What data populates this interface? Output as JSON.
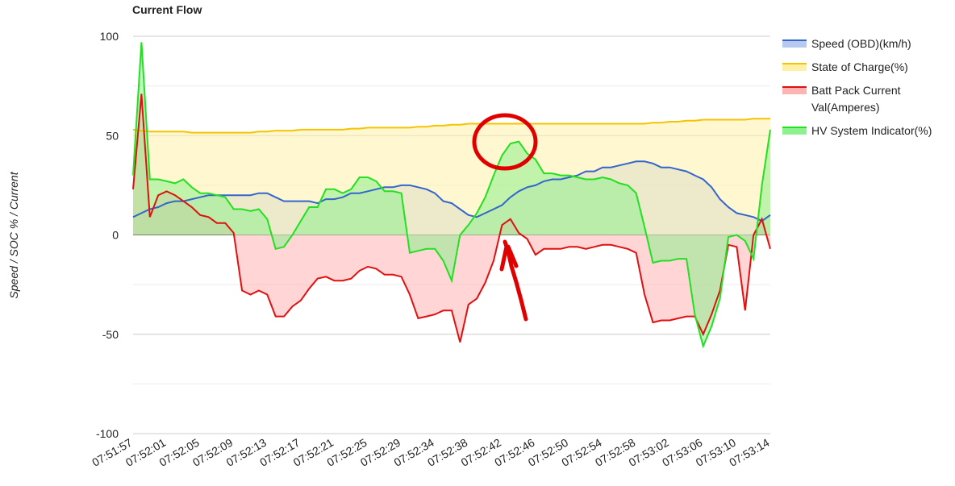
{
  "chart_data": {
    "type": "area",
    "title": "Current Flow",
    "y_label": "Speed / SOC % / Current",
    "categories": [
      "07:51:57",
      null,
      null,
      null,
      "07:52:01",
      null,
      null,
      null,
      "07:52:05",
      null,
      null,
      null,
      "07:52:09",
      null,
      null,
      null,
      "07:52:13",
      null,
      null,
      null,
      "07:52:17",
      null,
      null,
      null,
      "07:52:21",
      null,
      null,
      null,
      "07:52:25",
      null,
      null,
      null,
      "07:52:29",
      null,
      null,
      null,
      "07:52:34",
      null,
      null,
      null,
      "07:52:38",
      null,
      null,
      null,
      "07:52:42",
      null,
      null,
      null,
      "07:52:46",
      null,
      null,
      null,
      "07:52:50",
      null,
      null,
      null,
      "07:52:54",
      null,
      null,
      null,
      "07:52:58",
      null,
      null,
      null,
      "07:53:02",
      null,
      null,
      null,
      "07:53:06",
      null,
      null,
      null,
      "07:53:10",
      null,
      null,
      null,
      "07:53:14"
    ],
    "series": [
      {
        "name": "Speed (OBD)(km/h)",
        "color": "#3366cc",
        "fill": "#b7c9ee",
        "values": [
          9,
          11,
          13,
          14,
          16,
          17,
          17,
          18,
          19,
          20,
          20,
          20,
          20,
          20,
          20,
          21,
          21,
          19,
          17,
          17,
          17,
          17,
          16,
          18,
          18,
          19,
          21,
          21,
          22,
          23,
          24,
          24,
          25,
          25,
          24,
          23,
          21,
          17,
          16,
          13,
          10,
          9,
          11,
          13,
          15,
          19,
          22,
          24,
          25,
          27,
          28,
          28,
          29,
          30,
          32,
          32,
          34,
          34,
          35,
          36,
          37,
          37,
          36,
          34,
          34,
          33,
          32,
          30,
          28,
          24,
          18,
          14,
          11,
          10,
          9,
          7,
          10
        ]
      },
      {
        "name": "State of Charge(%)",
        "color": "#f5c400",
        "fill": "#fff0a8",
        "values": [
          53,
          52.5,
          52,
          52,
          52,
          52,
          52,
          51.5,
          51.5,
          51.5,
          51.5,
          51.5,
          51.5,
          51.5,
          51.5,
          52,
          52,
          52.5,
          52.5,
          52.5,
          53,
          53,
          53,
          53,
          53,
          53,
          53.5,
          53.5,
          54,
          54,
          54,
          54,
          54,
          54,
          54.5,
          54.5,
          55,
          55,
          55.5,
          55.5,
          56,
          56,
          56,
          56,
          56,
          56,
          56,
          56,
          56,
          56,
          56,
          56,
          56,
          56,
          56,
          56,
          56,
          56,
          56,
          56,
          56,
          56,
          56.5,
          56.5,
          57,
          57,
          57.5,
          57.5,
          58,
          58,
          58,
          58,
          58,
          58,
          58.5,
          58.5,
          58.5
        ]
      },
      {
        "name": "Batt Pack Current Val(Amperes)",
        "color": "#e01010",
        "fill": "#ffb3b3",
        "values": [
          23,
          71,
          9,
          20,
          22,
          20,
          17,
          14,
          10,
          9,
          6,
          6,
          1,
          -28,
          -30,
          -28,
          -30,
          -41,
          -41,
          -36,
          -33,
          -27,
          -22,
          -21,
          -23,
          -23,
          -22,
          -18,
          -16,
          -17,
          -20,
          -20,
          -21,
          -30,
          -42,
          -41,
          -40,
          -38,
          -38,
          -54,
          -35,
          -32,
          -24,
          -13,
          5,
          8,
          1,
          -2,
          -10,
          -7,
          -7,
          -7,
          -6,
          -6,
          -7,
          -6,
          -5,
          -5,
          -6,
          -7,
          -9,
          -30,
          -44,
          -43,
          -43,
          -42,
          -41,
          -41,
          -50,
          -40,
          -28,
          -5,
          -6,
          -38,
          0,
          8,
          -7
        ]
      },
      {
        "name": "HV System Indicator(%)",
        "color": "#22e022",
        "fill": "#8ef08e",
        "values": [
          30,
          97,
          28,
          28,
          27,
          26,
          28,
          24,
          21,
          21,
          20,
          19,
          13,
          13,
          12,
          13,
          8,
          -7,
          -6,
          0,
          7,
          14,
          14,
          23,
          23,
          21,
          23,
          29,
          29,
          27,
          22,
          22,
          21,
          -9,
          -8,
          -7,
          -7,
          -13,
          -23,
          0,
          5,
          11,
          19,
          30,
          40,
          46,
          47,
          41,
          38,
          31,
          31,
          30,
          30,
          29,
          28,
          28,
          29,
          28,
          26,
          25,
          21,
          4,
          -14,
          -13,
          -13,
          -12,
          -12,
          -40,
          -56,
          -46,
          -32,
          -1,
          0,
          -3,
          -12,
          25,
          53
        ]
      }
    ],
    "ylim": [
      -100,
      100
    ],
    "yticks": [
      -100,
      -50,
      0,
      50,
      100
    ],
    "minor_gridlines": [
      -75,
      -25,
      25,
      75
    ],
    "grid": true,
    "legend": "right"
  }
}
